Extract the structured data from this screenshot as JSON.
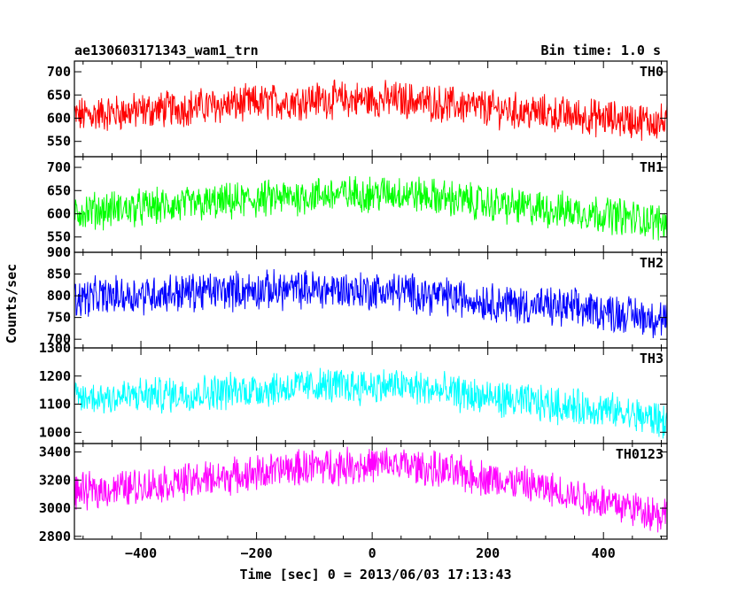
{
  "title": "ae130603171343_wam1_trn",
  "bin_time": "Bin time: 1.0 s",
  "xlabel": "Time [sec] 0 = 2013/06/03 17:13:43",
  "ylabel": "Counts/sec",
  "chart_data": {
    "type": "line",
    "x_range": [
      -515,
      510
    ],
    "x_ticks": [
      -400,
      -200,
      0,
      200,
      400
    ],
    "grid": false,
    "panels": [
      {
        "name": "TH0",
        "color": "#ff0000",
        "ylim": [
          517,
          723
        ],
        "yticks": [
          550,
          600,
          650,
          700
        ],
        "ytick_labels": [
          "550",
          "600",
          "650",
          "700"
        ],
        "trend": {
          "x": [
            -515,
            -300,
            -100,
            50,
            250,
            400,
            510
          ],
          "y": [
            605,
            625,
            640,
            640,
            615,
            600,
            590
          ]
        },
        "noise_amp": 34
      },
      {
        "name": "TH1",
        "color": "#00ff00",
        "ylim": [
          517,
          723
        ],
        "yticks": [
          550,
          600,
          650,
          700
        ],
        "ytick_labels": [
          "550",
          "600",
          "650",
          "700"
        ],
        "trend": {
          "x": [
            -515,
            -300,
            -100,
            50,
            250,
            400,
            510
          ],
          "y": [
            605,
            620,
            640,
            645,
            615,
            600,
            580
          ]
        },
        "noise_amp": 34
      },
      {
        "name": "TH2",
        "color": "#0000ff",
        "ylim": [
          680,
          900
        ],
        "yticks": [
          700,
          750,
          800,
          850,
          900
        ],
        "ytick_labels": [
          "700",
          "750",
          "800",
          "850",
          "900"
        ],
        "trend": {
          "x": [
            -515,
            -300,
            -100,
            50,
            250,
            400,
            510
          ],
          "y": [
            795,
            810,
            815,
            810,
            780,
            765,
            745
          ]
        },
        "noise_amp": 38
      },
      {
        "name": "TH3",
        "color": "#00ffff",
        "ylim": [
          960,
          1300
        ],
        "yticks": [
          1000,
          1100,
          1200,
          1300
        ],
        "ytick_labels": [
          "1000",
          "1100",
          "1200",
          "1300"
        ],
        "trend": {
          "x": [
            -515,
            -300,
            -100,
            50,
            250,
            400,
            510
          ],
          "y": [
            1120,
            1140,
            1165,
            1165,
            1110,
            1080,
            1040
          ]
        },
        "noise_amp": 55
      },
      {
        "name": "TH0123",
        "color": "#ff00ff",
        "ylim": [
          2780,
          3460
        ],
        "yticks": [
          2800,
          3000,
          3200,
          3400
        ],
        "ytick_labels": [
          "2800",
          "3000",
          "3200",
          "3400"
        ],
        "trend": {
          "x": [
            -515,
            -300,
            -100,
            50,
            250,
            400,
            510
          ],
          "y": [
            3110,
            3200,
            3300,
            3310,
            3180,
            3050,
            2950
          ]
        },
        "noise_amp": 110
      }
    ]
  }
}
